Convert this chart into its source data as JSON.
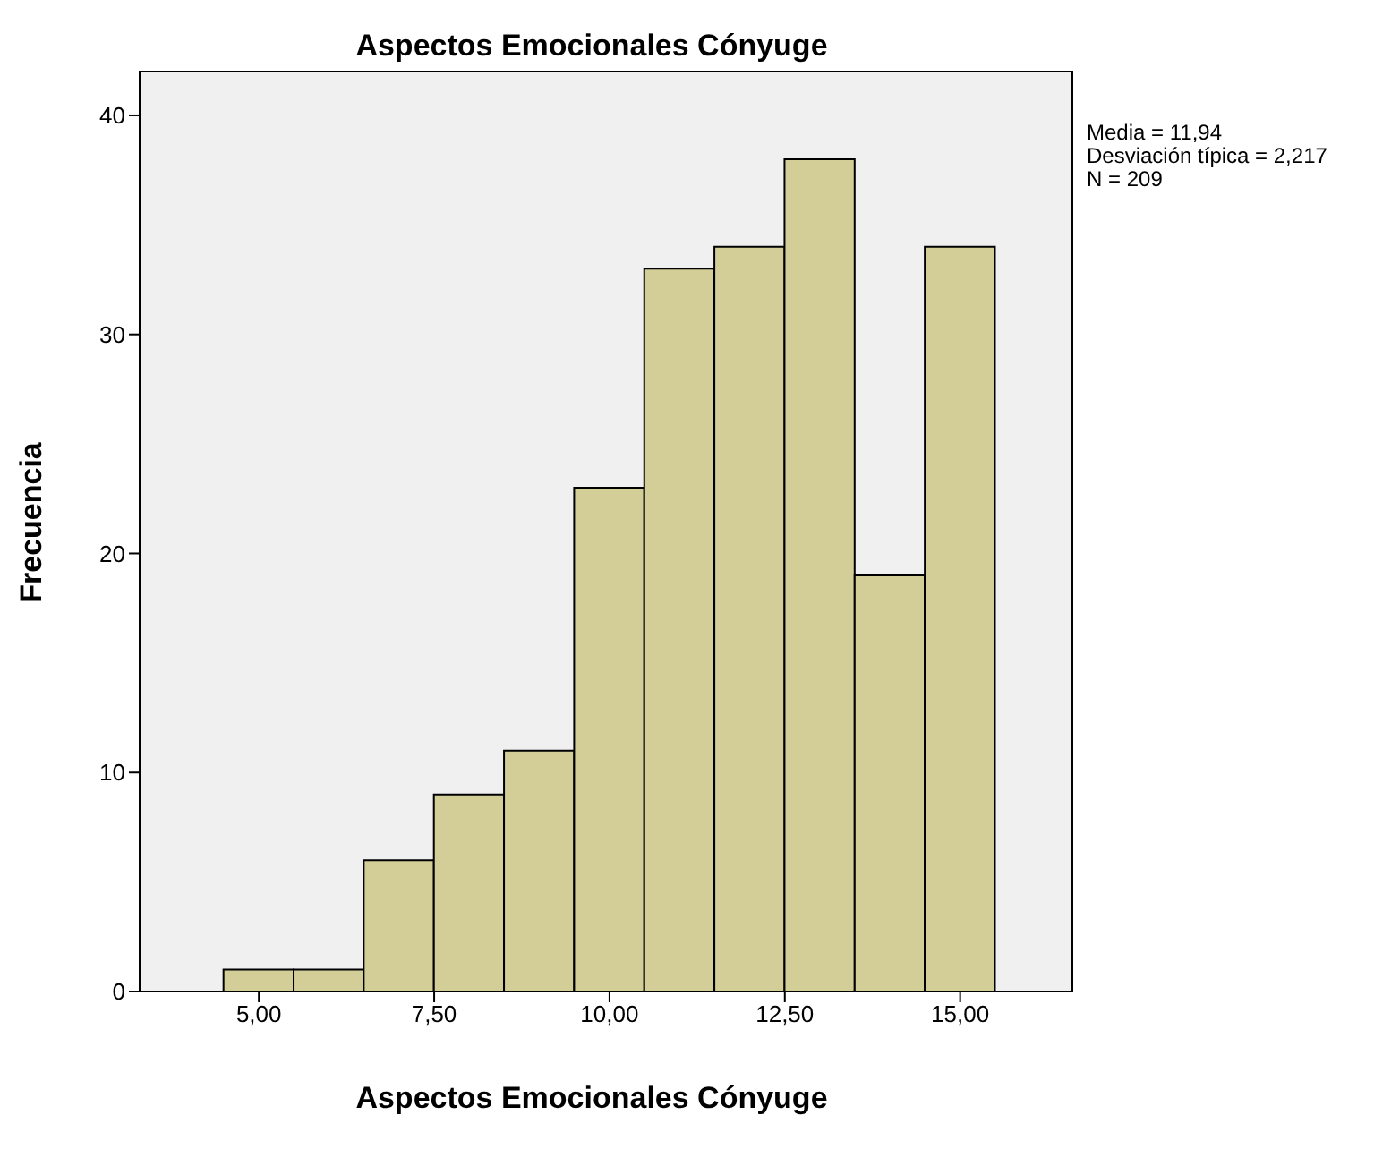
{
  "chart_data": {
    "type": "histogram",
    "title": "Aspectos Emocionales Cónyuge",
    "xlabel": "Aspectos Emocionales Cónyuge",
    "ylabel": "Frecuencia",
    "bins": [
      4.5,
      5.5,
      6.5,
      7.5,
      8.5,
      9.5,
      10.5,
      11.5,
      12.5,
      13.5,
      14.5,
      15.5
    ],
    "values": [
      1,
      1,
      6,
      9,
      11,
      23,
      33,
      34,
      38,
      19,
      34
    ],
    "color": "#d3ce97",
    "xlim": [
      3.3,
      16.6
    ],
    "xticks": [
      {
        "value": 5,
        "label": "5,00"
      },
      {
        "value": 7.5,
        "label": "7,50"
      },
      {
        "value": 10,
        "label": "10,00"
      },
      {
        "value": 12.5,
        "label": "12,50"
      },
      {
        "value": 15,
        "label": "15,00"
      }
    ],
    "ylim": [
      0,
      42
    ],
    "yticks": [
      0,
      10,
      20,
      30,
      40
    ],
    "annotations": [
      "Media = 11,94",
      "Desviación típica = 2,217",
      "N = 209"
    ]
  }
}
